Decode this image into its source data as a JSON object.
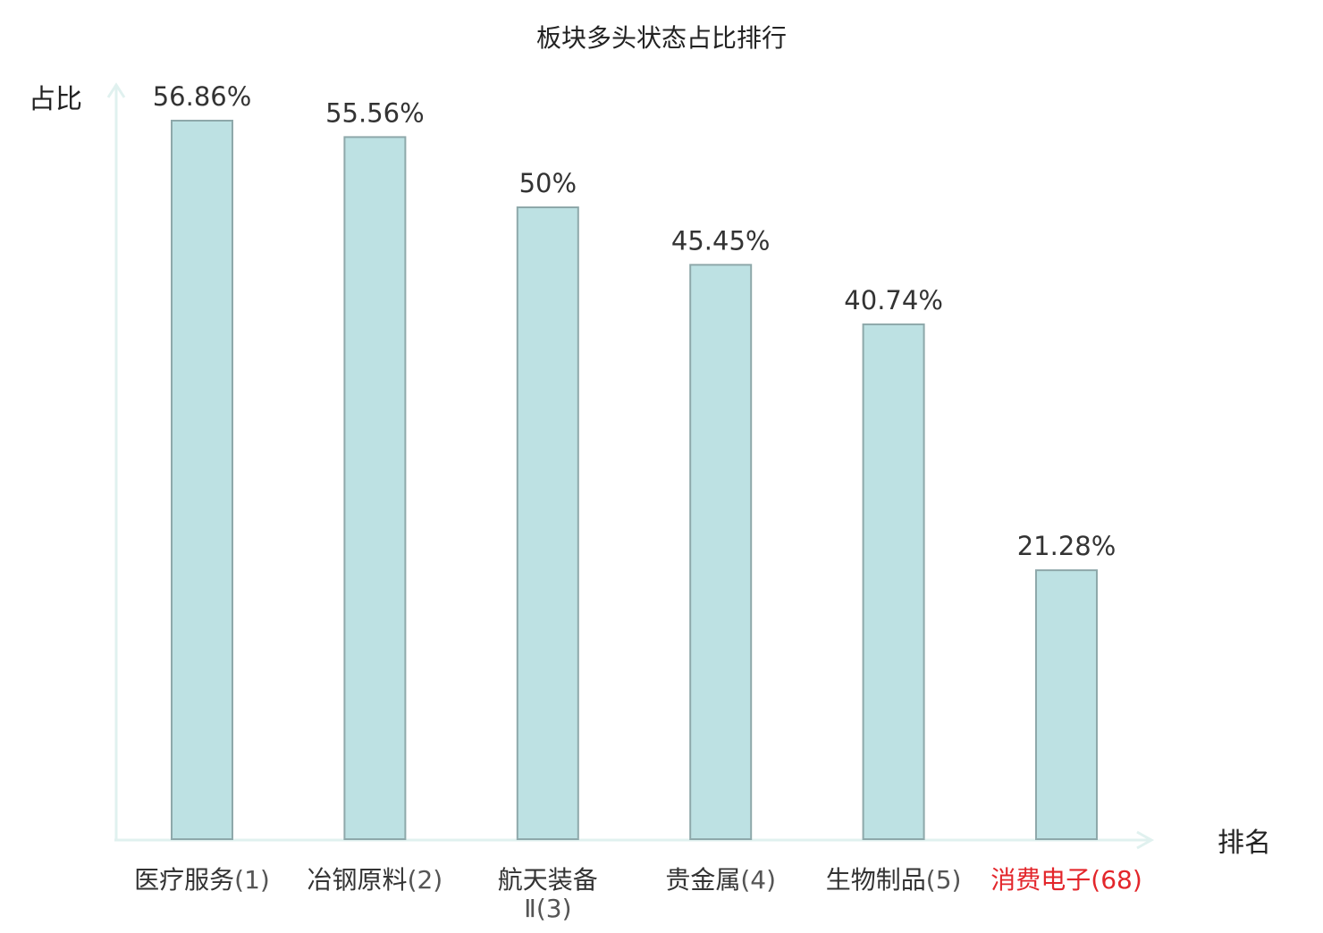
{
  "chart_data": {
    "type": "bar",
    "title": "板块多头状态占比排行",
    "ylabel": "占比",
    "xlabel": "排名",
    "ylim": [
      0,
      60
    ],
    "categories": [
      {
        "name": "医疗服务",
        "rank": "(1)",
        "highlight": false
      },
      {
        "name": "冶钢原料",
        "rank": "(2)",
        "highlight": false
      },
      {
        "name": "航天装备",
        "name2": "Ⅱ(3)",
        "rank": "",
        "highlight": false
      },
      {
        "name": "贵金属",
        "rank": "(4)",
        "highlight": false
      },
      {
        "name": "生物制品",
        "rank": "(5)",
        "highlight": false
      },
      {
        "name": "消费电子",
        "rank": "(68)",
        "highlight": true
      }
    ],
    "values": [
      56.86,
      55.56,
      50,
      45.45,
      40.74,
      21.28
    ],
    "value_labels": [
      "56.86%",
      "55.56%",
      "50%",
      "45.45%",
      "40.74%",
      "21.28%"
    ],
    "grid": false,
    "legend": "none",
    "colors": {
      "bar_fill": "#bde1e3",
      "bar_stroke": "#8ea8aa",
      "axis": "#e0f1ef",
      "text": "#333333",
      "rank_text": "#555555",
      "highlight": "#e3262b"
    }
  }
}
